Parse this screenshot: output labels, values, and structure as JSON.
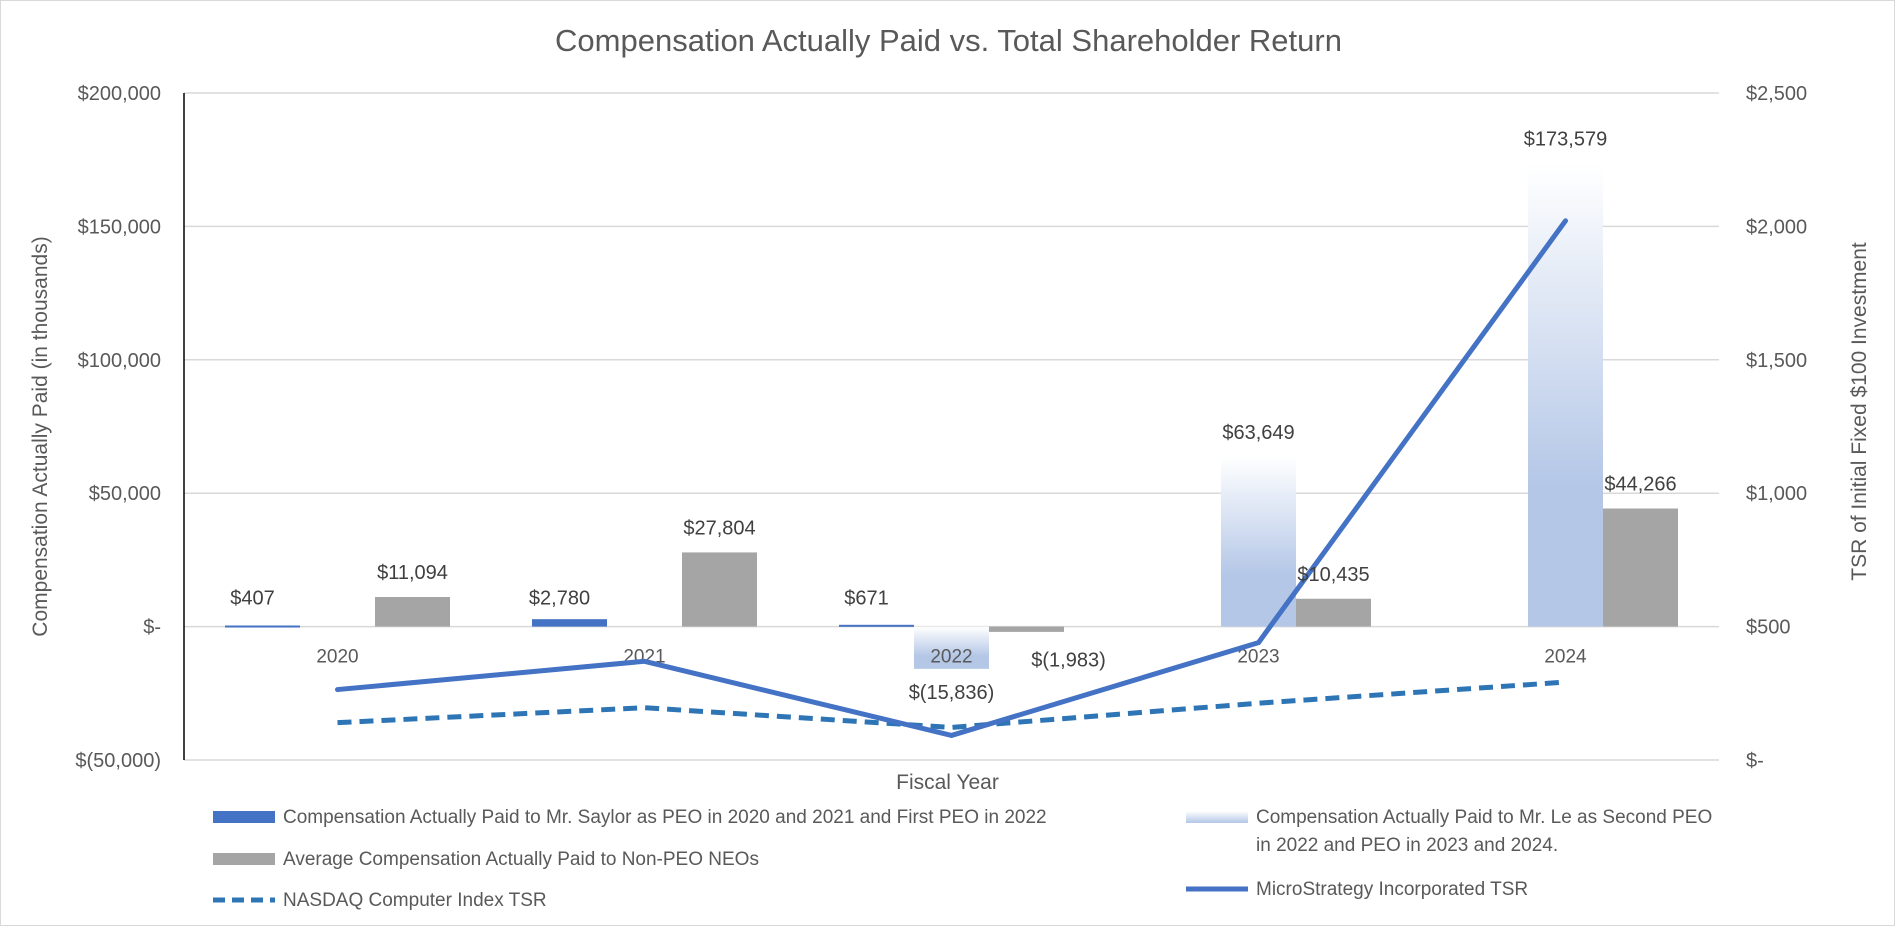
{
  "chart_data": {
    "type": "bar",
    "title": "Compensation Actually Paid vs. Total Shareholder Return",
    "xlabel": "Fiscal Year",
    "ylabel": "Compensation Actually Paid (in thousands)",
    "y2label": "TSR of Initial Fixed $100 Investment",
    "categories": [
      "2020",
      "2021",
      "2022",
      "2023",
      "2024"
    ],
    "ylim": [
      -50000,
      200000
    ],
    "y2lim": [
      0,
      2500
    ],
    "yticks": [
      {
        "value": 200000,
        "label": "$200,000"
      },
      {
        "value": 150000,
        "label": "$150,000"
      },
      {
        "value": 100000,
        "label": "$100,000"
      },
      {
        "value": 50000,
        "label": "$50,000"
      },
      {
        "value": 0,
        "label": "$-"
      },
      {
        "value": -50000,
        "label": "$(50,000)"
      }
    ],
    "y2ticks": [
      {
        "value": 2500,
        "label": "$2,500"
      },
      {
        "value": 2000,
        "label": "$2,000"
      },
      {
        "value": 1500,
        "label": "$1,500"
      },
      {
        "value": 1000,
        "label": "$1,000"
      },
      {
        "value": 500,
        "label": "$500"
      },
      {
        "value": 0,
        "label": "$-"
      }
    ],
    "series": [
      {
        "name": "Compensation Actually Paid to Mr. Saylor as PEO in 2020 and 2021 and First PEO in 2022",
        "type": "bar",
        "color": "#4472c4",
        "values": [
          407,
          2780,
          671,
          null,
          null
        ],
        "labels": [
          "$407",
          "$2,780",
          "$671",
          null,
          null
        ]
      },
      {
        "name": "Compensation Actually Paid to Mr. Le as Second PEO in 2022 and PEO in 2023 and 2024.",
        "type": "bar",
        "color": "#b4c7e7",
        "gradient": true,
        "values": [
          null,
          null,
          -15836,
          63649,
          173579
        ],
        "labels": [
          null,
          null,
          "$(15,836)",
          "$63,649",
          "$173,579"
        ]
      },
      {
        "name": "Average Compensation Actually Paid to Non-PEO NEOs",
        "type": "bar",
        "color": "#a5a5a5",
        "values": [
          11094,
          27804,
          -1983,
          10435,
          44266
        ],
        "labels": [
          "$11,094",
          "$27,804",
          "$(1,983)",
          "$10,435",
          "$44,266"
        ]
      },
      {
        "name": "NASDAQ Computer Index TSR",
        "type": "line",
        "axis": "secondary",
        "dashed": true,
        "color": "#2e75b6",
        "values": [
          140,
          196,
          122,
          213,
          292
        ]
      },
      {
        "name": "MicroStrategy Incorporated TSR",
        "type": "line",
        "axis": "secondary",
        "dashed": false,
        "color": "#4472c4",
        "values": [
          264,
          370,
          92,
          440,
          2021
        ]
      }
    ]
  }
}
